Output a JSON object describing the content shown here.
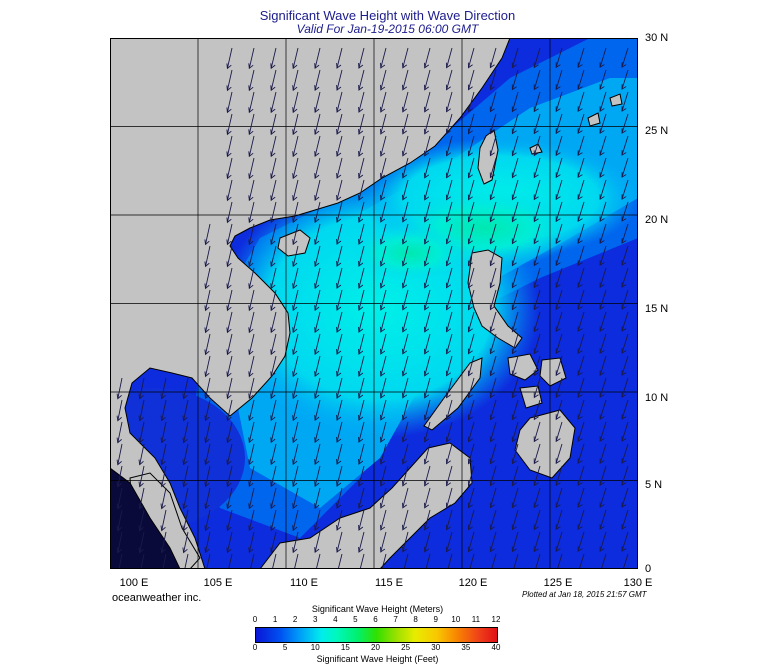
{
  "title": "Significant Wave Height with Wave Direction",
  "subtitle": "Valid For Jan-19-2015 06:00 GMT",
  "lat_labels": [
    "30 N",
    "25 N",
    "20 N",
    "15 N",
    "10 N",
    "5 N",
    "0"
  ],
  "lon_labels": [
    "100 E",
    "105 E",
    "110 E",
    "115 E",
    "120 E",
    "125 E",
    "130 E"
  ],
  "brand": "oceanweather inc.",
  "plotted": "Plotted at Jan 18, 2015 21:57 GMT",
  "colorbar": {
    "meters_title": "Significant Wave Height (Meters)",
    "feet_title": "Significant Wave Height (Feet)",
    "meters_ticks": [
      "0",
      "1",
      "2",
      "3",
      "4",
      "5",
      "6",
      "7",
      "8",
      "9",
      "10",
      "11",
      "12"
    ],
    "feet_ticks": [
      "0",
      "5",
      "10",
      "15",
      "20",
      "25",
      "30",
      "35",
      "40"
    ]
  },
  "colors": {
    "land": "#c3c3c3",
    "ocean_low": "#0a18d6",
    "ocean_mid": "#0090f0",
    "ocean_high": "#00e8e8",
    "ocean_peak": "#00ec98",
    "arrow": "#1a1a4a"
  },
  "wave_direction": "southwest (from northeast monsoon)"
}
